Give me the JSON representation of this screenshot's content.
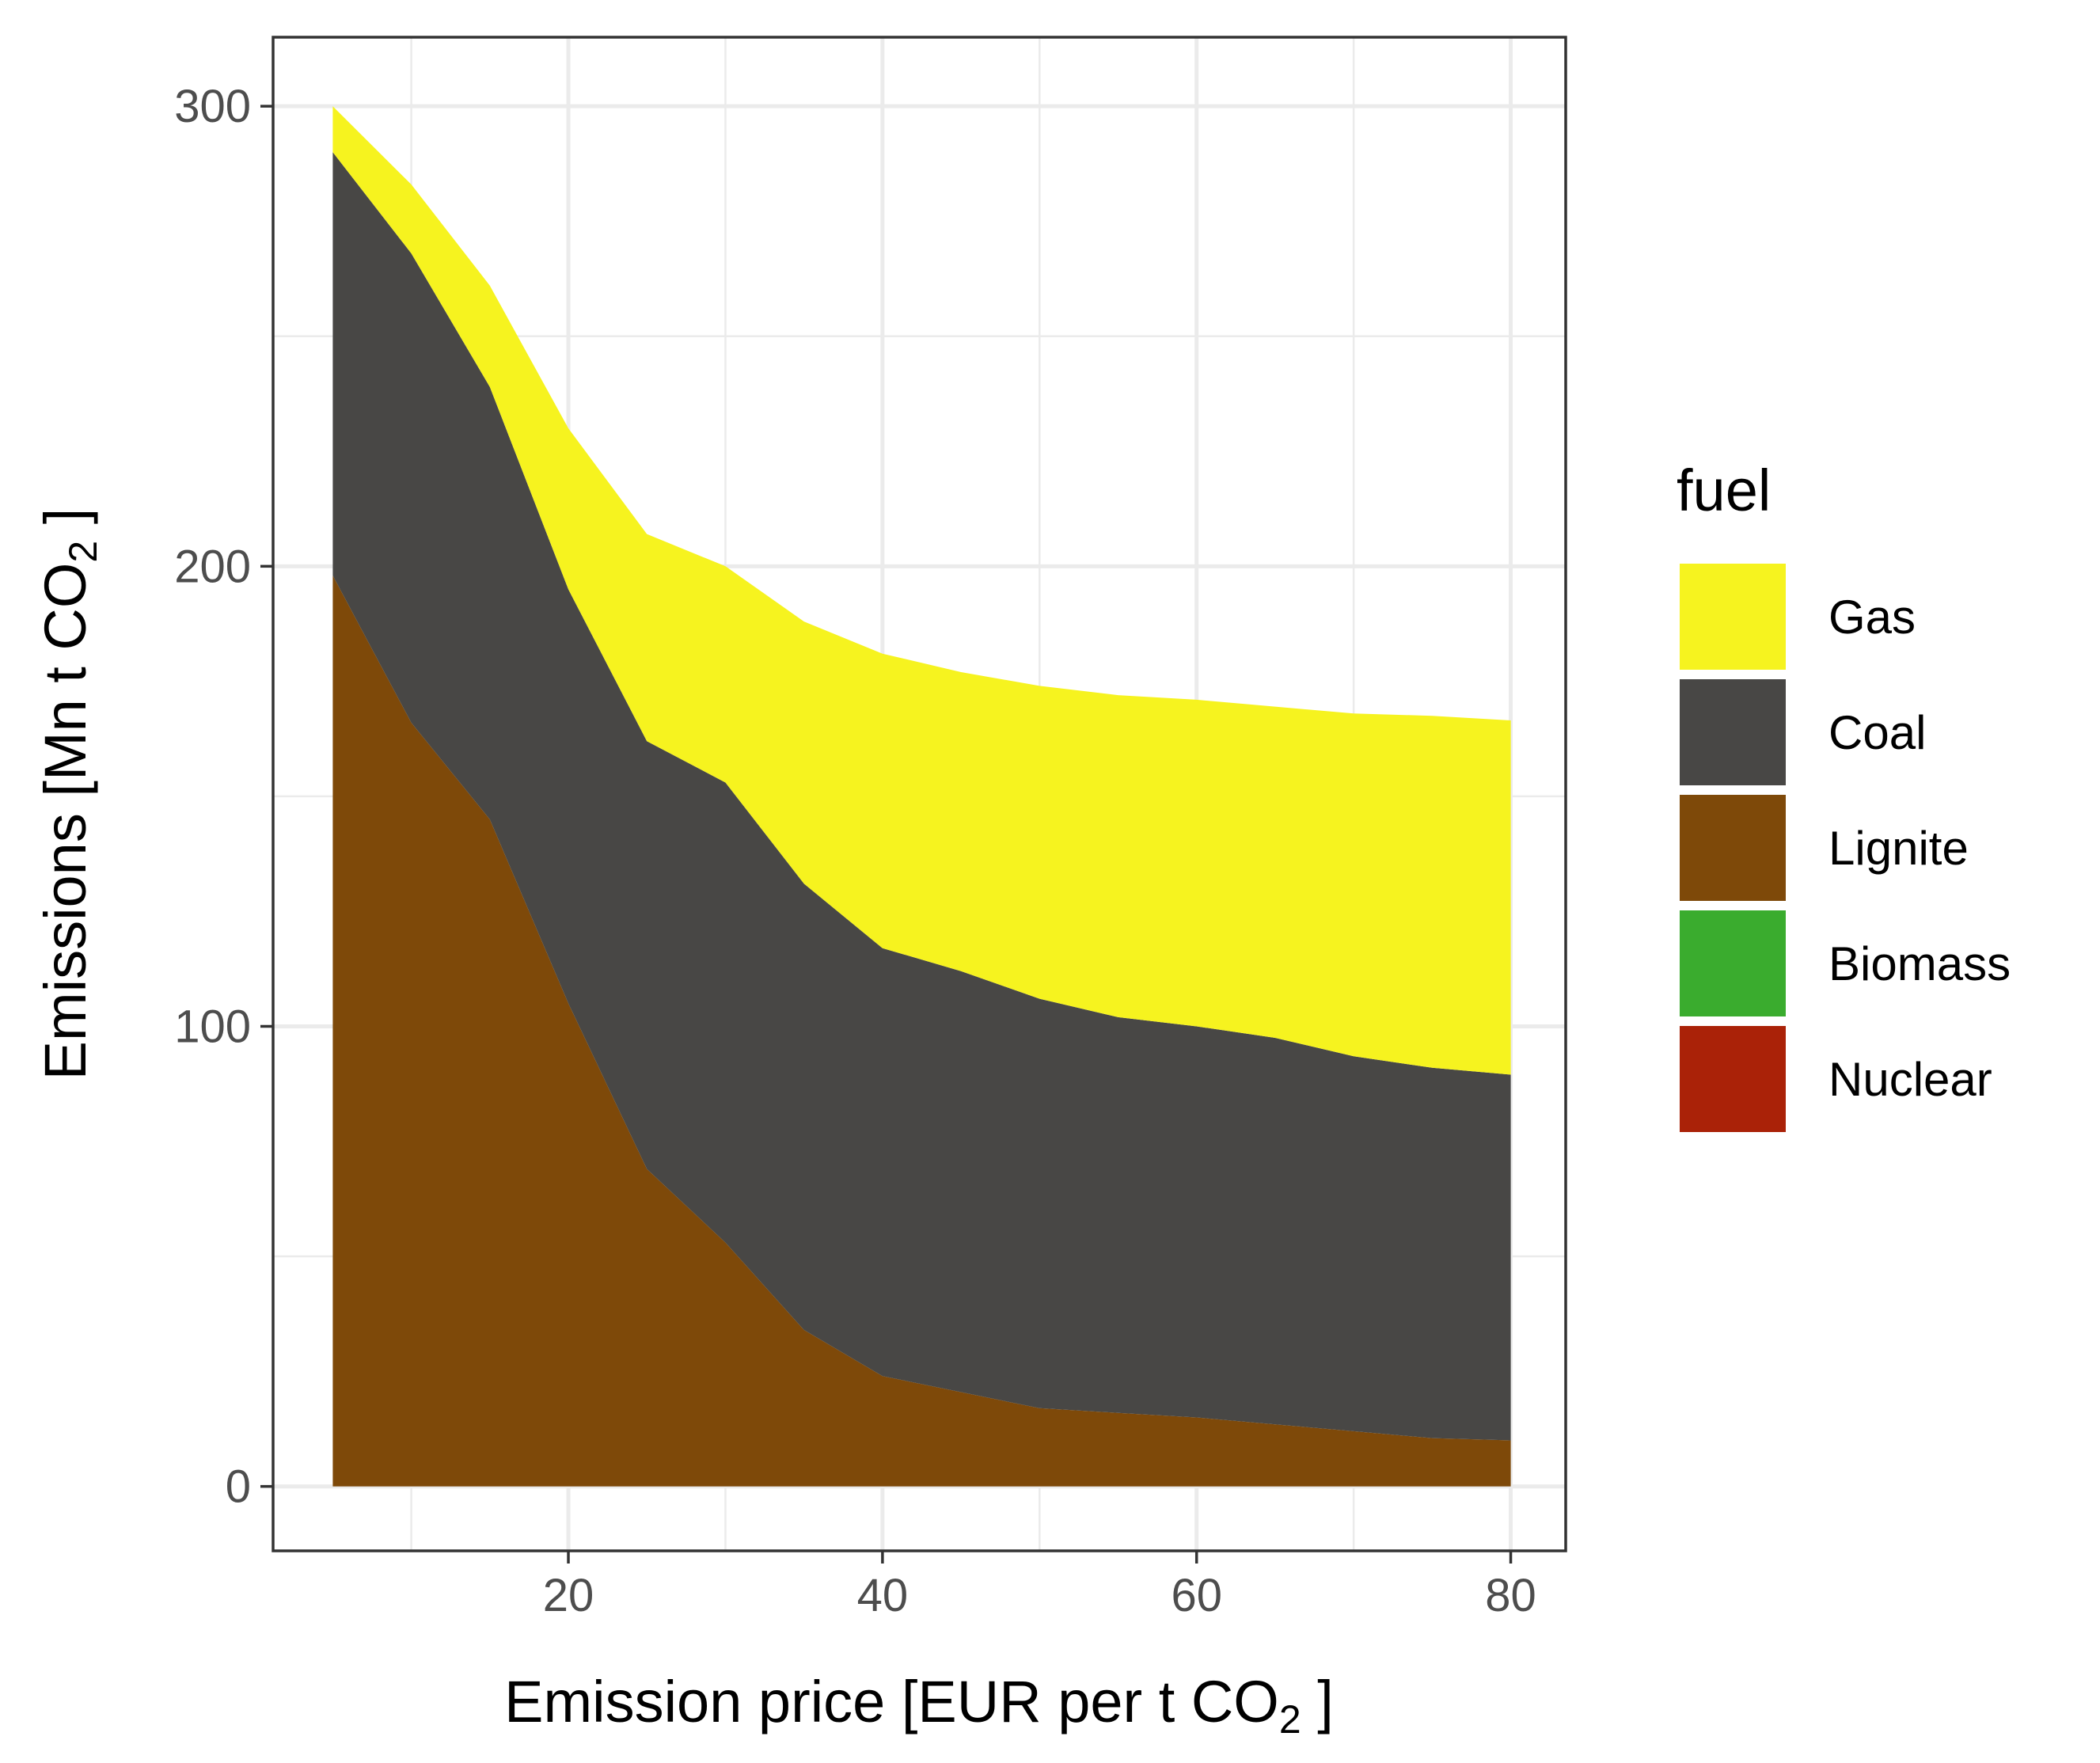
{
  "chart_data": {
    "type": "area",
    "stacked": true,
    "x": [
      5,
      10,
      15,
      20,
      25,
      30,
      35,
      40,
      45,
      50,
      55,
      60,
      65,
      70,
      75,
      80
    ],
    "series": [
      {
        "name": "Nuclear",
        "color": "#AA2208",
        "values": [
          0,
          0,
          0,
          0,
          0,
          0,
          0,
          0,
          0,
          0,
          0,
          0,
          0,
          0,
          0,
          0
        ]
      },
      {
        "name": "Biomass",
        "color": "#3AAC2E",
        "values": [
          0,
          0,
          0,
          0,
          0,
          0,
          0,
          0,
          0,
          0,
          0,
          0,
          0,
          0,
          0,
          0
        ]
      },
      {
        "name": "Lignite",
        "color": "#7E4909",
        "values": [
          198,
          166,
          145,
          105,
          69,
          53,
          34,
          24,
          20.5,
          17,
          16,
          15,
          13.5,
          12,
          10.5,
          10
        ]
      },
      {
        "name": "Coal",
        "color": "#484745",
        "values": [
          92,
          102,
          94,
          90,
          93,
          100,
          97,
          93,
          91.5,
          89,
          86,
          85,
          84,
          81.5,
          80.5,
          79.5
        ]
      },
      {
        "name": "Gas",
        "color": "#F6F31F",
        "values": [
          10,
          15,
          22,
          35,
          45,
          47,
          57,
          64,
          65,
          68,
          70,
          71,
          72,
          74.5,
          76.5,
          77
        ]
      }
    ],
    "xlim": [
      1.2,
      83.5
    ],
    "ylim": [
      -14,
      315
    ],
    "x_ticks": [
      "20",
      "40",
      "60",
      "80"
    ],
    "y_ticks": [
      "0",
      "100",
      "200",
      "300"
    ],
    "xlabel": "Emission price [EUR per t CO",
    "xlabel_subscript": "2",
    "xlabel_suffix": " ]",
    "ylabel": "Emissions [Mn t CO",
    "ylabel_subscript": "2",
    "ylabel_suffix": " ]",
    "legend_title": "fuel",
    "legend_order": [
      "Gas",
      "Coal",
      "Lignite",
      "Biomass",
      "Nuclear"
    ],
    "legend_placement": "right",
    "grid": true
  }
}
